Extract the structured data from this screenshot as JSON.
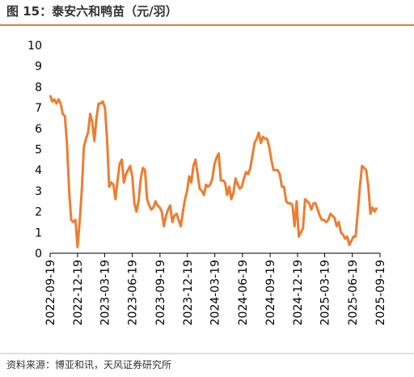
{
  "chart_data": {
    "type": "line",
    "title": "图 15：泰安六和鸭苗（元/羽）",
    "source": "资料来源：博亚和讯，天风证券研究所",
    "color": "#ed7d31",
    "x": [
      "2022-09-19",
      "2022-09-26",
      "2022-10-03",
      "2022-10-10",
      "2022-10-17",
      "2022-10-24",
      "2022-10-31",
      "2022-11-07",
      "2022-11-14",
      "2022-11-21",
      "2022-11-28",
      "2022-12-05",
      "2022-12-12",
      "2022-12-19",
      "2022-12-26",
      "2023-01-02",
      "2023-01-09",
      "2023-01-16",
      "2023-01-23",
      "2023-01-30",
      "2023-02-06",
      "2023-02-13",
      "2023-02-20",
      "2023-02-27",
      "2023-03-06",
      "2023-03-13",
      "2023-03-20",
      "2023-03-27",
      "2023-04-03",
      "2023-04-10",
      "2023-04-17",
      "2023-04-24",
      "2023-05-01",
      "2023-05-08",
      "2023-05-15",
      "2023-05-22",
      "2023-05-29",
      "2023-06-05",
      "2023-06-12",
      "2023-06-19",
      "2023-06-26",
      "2023-07-03",
      "2023-07-10",
      "2023-07-17",
      "2023-07-24",
      "2023-07-31",
      "2023-08-07",
      "2023-08-14",
      "2023-08-21",
      "2023-08-28",
      "2023-09-04",
      "2023-09-11",
      "2023-09-18",
      "2023-09-25",
      "2023-10-02",
      "2023-10-09",
      "2023-10-16",
      "2023-10-23",
      "2023-10-30",
      "2023-11-06",
      "2023-11-13",
      "2023-11-20",
      "2023-11-27",
      "2023-12-04",
      "2023-12-11",
      "2023-12-18",
      "2023-12-25",
      "2024-01-01",
      "2024-01-08",
      "2024-01-15",
      "2024-01-22",
      "2024-01-29",
      "2024-02-05",
      "2024-02-12",
      "2024-02-19",
      "2024-02-26",
      "2024-03-04",
      "2024-03-11",
      "2024-03-18",
      "2024-03-25",
      "2024-04-01",
      "2024-04-08",
      "2024-04-15",
      "2024-04-22",
      "2024-04-29",
      "2024-05-06",
      "2024-05-13",
      "2024-05-20",
      "2024-05-27",
      "2024-06-03",
      "2024-06-10",
      "2024-06-17",
      "2024-06-24",
      "2024-07-01",
      "2024-07-08",
      "2024-07-15",
      "2024-07-22",
      "2024-07-29",
      "2024-08-05",
      "2024-08-12",
      "2024-08-19",
      "2024-08-26",
      "2024-09-02",
      "2024-09-09",
      "2024-09-16",
      "2024-09-23",
      "2024-09-30",
      "2024-10-07",
      "2024-10-14",
      "2024-10-21",
      "2024-10-28",
      "2024-11-04",
      "2024-11-11",
      "2024-11-18",
      "2024-11-25",
      "2024-12-02",
      "2024-12-09",
      "2024-12-16",
      "2024-12-23",
      "2024-12-30",
      "2025-01-06",
      "2025-01-13",
      "2025-01-20",
      "2025-01-27",
      "2025-02-03",
      "2025-02-10",
      "2025-02-17",
      "2025-02-24",
      "2025-03-03",
      "2025-03-10",
      "2025-03-17",
      "2025-03-24",
      "2025-03-31",
      "2025-04-07",
      "2025-04-14",
      "2025-04-21",
      "2025-04-28",
      "2025-05-05",
      "2025-05-12",
      "2025-05-19",
      "2025-05-26",
      "2025-06-02",
      "2025-06-09",
      "2025-06-16",
      "2025-06-23",
      "2025-06-30",
      "2025-07-07",
      "2025-07-14",
      "2025-07-21",
      "2025-07-28",
      "2025-08-04",
      "2025-08-11",
      "2025-08-18",
      "2025-08-25",
      "2025-09-01",
      "2025-09-08"
    ],
    "values": [
      7.6,
      7.3,
      7.4,
      7.2,
      7.4,
      7.2,
      6.7,
      6.6,
      5.3,
      3.0,
      1.6,
      1.5,
      1.6,
      0.3,
      1.5,
      3.0,
      5.1,
      5.5,
      5.8,
      6.7,
      6.3,
      5.4,
      6.5,
      7.2,
      7.2,
      7.3,
      7.0,
      5.5,
      3.2,
      3.4,
      3.3,
      2.6,
      3.5,
      4.3,
      4.5,
      3.4,
      3.8,
      4.0,
      4.2,
      3.7,
      2.4,
      2.0,
      2.5,
      3.6,
      4.1,
      4.0,
      2.6,
      2.3,
      2.1,
      2.2,
      2.5,
      2.3,
      2.2,
      2.0,
      1.3,
      1.8,
      2.1,
      2.3,
      1.5,
      1.8,
      1.9,
      1.6,
      1.3,
      2.0,
      2.6,
      3.0,
      3.7,
      3.4,
      4.2,
      4.5,
      3.8,
      3.1,
      3.0,
      2.8,
      3.3,
      3.2,
      3.3,
      3.6,
      4.3,
      4.6,
      4.8,
      3.5,
      3.5,
      3.4,
      2.8,
      3.2,
      2.6,
      2.9,
      3.6,
      3.3,
      3.1,
      3.2,
      3.6,
      3.9,
      3.8,
      4.1,
      4.7,
      5.3,
      5.5,
      5.8,
      5.3,
      5.6,
      5.5,
      5.5,
      5.1,
      4.5,
      4.0,
      4.0,
      4.0,
      3.8,
      3.2,
      3.2,
      2.5,
      2.4,
      2.4,
      2.3,
      1.3,
      2.5,
      0.8,
      1.0,
      1.2,
      2.6,
      2.5,
      2.4,
      2.1,
      2.4,
      2.4,
      2.1,
      1.8,
      1.6,
      1.6,
      1.5,
      1.6,
      1.9,
      1.8,
      1.7,
      1.3,
      1.5,
      1.0,
      0.9,
      0.7,
      0.8,
      0.4,
      0.6,
      0.8,
      0.8,
      2.0,
      3.2,
      4.2,
      4.1,
      4.0,
      3.2,
      1.9,
      2.2,
      2.0,
      2.2
    ],
    "xlim": [
      "2022-09-19",
      "2025-09-19"
    ],
    "xticks": [
      "2022-09-19",
      "2022-12-19",
      "2023-03-19",
      "2023-06-19",
      "2023-09-19",
      "2023-12-19",
      "2024-03-19",
      "2024-06-19",
      "2024-09-19",
      "2024-12-19",
      "2025-03-19",
      "2025-06-19",
      "2025-09-19"
    ],
    "ylim": [
      0,
      10
    ],
    "yticks": [
      0,
      1,
      2,
      3,
      4,
      5,
      6,
      7,
      8,
      9,
      10
    ]
  }
}
